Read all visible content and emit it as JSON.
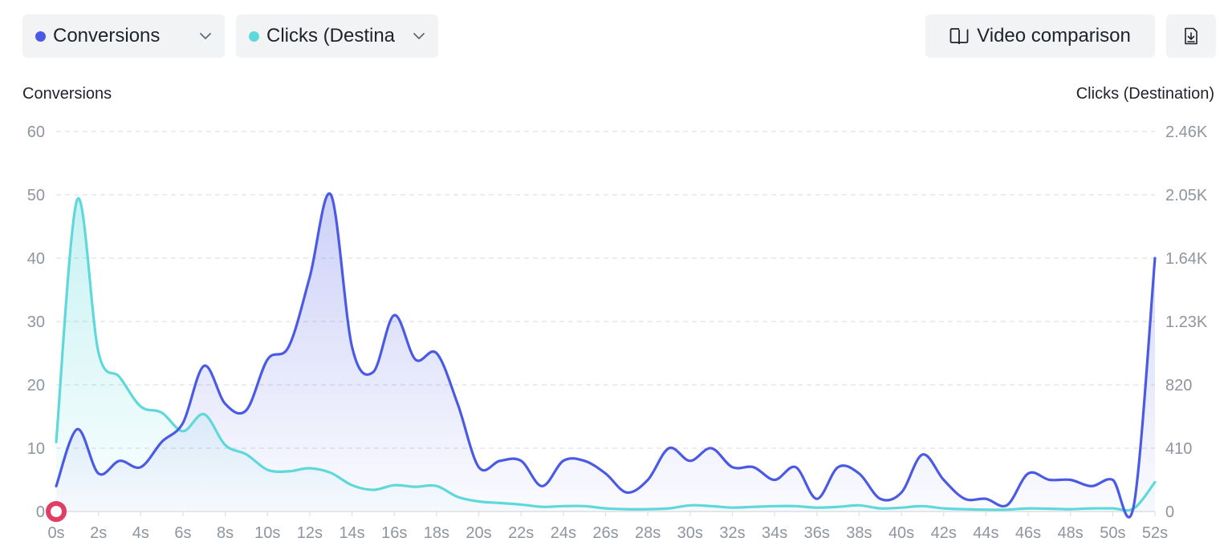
{
  "toolbar": {
    "metric_primary": {
      "label": "Conversions",
      "color": "#4a5ae4",
      "icon": "chevron-down-icon"
    },
    "metric_secondary": {
      "label": "Clicks (Destination)",
      "label_visible": "Clicks (Destina",
      "color": "#5fd8dc",
      "icon": "chevron-down-icon"
    },
    "video_comparison": {
      "label": "Video comparison",
      "icon": "split-view-icon"
    },
    "download": {
      "icon": "download-icon"
    }
  },
  "chart_data": {
    "type": "area",
    "x_unit": "s",
    "x": [
      0,
      1,
      2,
      3,
      4,
      5,
      6,
      7,
      8,
      9,
      10,
      11,
      12,
      13,
      14,
      15,
      16,
      17,
      18,
      19,
      20,
      21,
      22,
      23,
      24,
      25,
      26,
      27,
      28,
      29,
      30,
      31,
      32,
      33,
      34,
      35,
      36,
      37,
      38,
      39,
      40,
      41,
      42,
      43,
      44,
      45,
      46,
      47,
      48,
      49,
      50,
      51,
      52
    ],
    "x_ticks": [
      "0s",
      "2s",
      "4s",
      "6s",
      "8s",
      "10s",
      "12s",
      "14s",
      "16s",
      "18s",
      "20s",
      "22s",
      "24s",
      "26s",
      "28s",
      "30s",
      "32s",
      "34s",
      "36s",
      "38s",
      "40s",
      "42s",
      "44s",
      "46s",
      "48s",
      "50s",
      "52s"
    ],
    "y_left": {
      "label": "Conversions",
      "range": [
        0,
        60
      ],
      "ticks": [
        "0",
        "10",
        "20",
        "30",
        "40",
        "50",
        "60"
      ]
    },
    "y_right": {
      "label": "Clicks (Destination)",
      "range": [
        0,
        2460
      ],
      "ticks": [
        "0",
        "410",
        "820",
        "1.23K",
        "1.64K",
        "2.05K",
        "2.46K"
      ]
    },
    "grid": "horizontal-dashed",
    "series": [
      {
        "name": "Conversions",
        "axis": "left",
        "color": "#4a5ae4",
        "values": [
          4,
          13,
          6,
          8,
          7,
          11,
          14,
          23,
          17,
          16,
          24,
          26,
          37,
          50,
          26,
          22,
          31,
          24,
          25,
          17,
          7,
          8,
          8,
          4,
          8,
          8,
          6,
          3,
          5,
          10,
          8,
          10,
          7,
          7,
          5,
          7,
          2,
          7,
          6,
          2,
          3,
          9,
          5,
          2,
          2,
          1,
          6,
          5,
          5,
          4,
          5,
          1,
          40
        ]
      },
      {
        "name": "Clicks (Destination)",
        "axis": "right",
        "color": "#5fd8dc",
        "values": [
          450,
          2020,
          1030,
          870,
          680,
          640,
          520,
          630,
          430,
          370,
          270,
          260,
          280,
          250,
          170,
          140,
          170,
          160,
          165,
          95,
          65,
          55,
          45,
          30,
          35,
          35,
          20,
          15,
          15,
          20,
          40,
          35,
          25,
          30,
          35,
          35,
          25,
          30,
          40,
          20,
          25,
          35,
          20,
          15,
          12,
          12,
          20,
          18,
          15,
          20,
          20,
          20,
          190
        ]
      }
    ],
    "marker": {
      "x": 0,
      "series": "Conversions",
      "color": "#e23d64"
    }
  }
}
